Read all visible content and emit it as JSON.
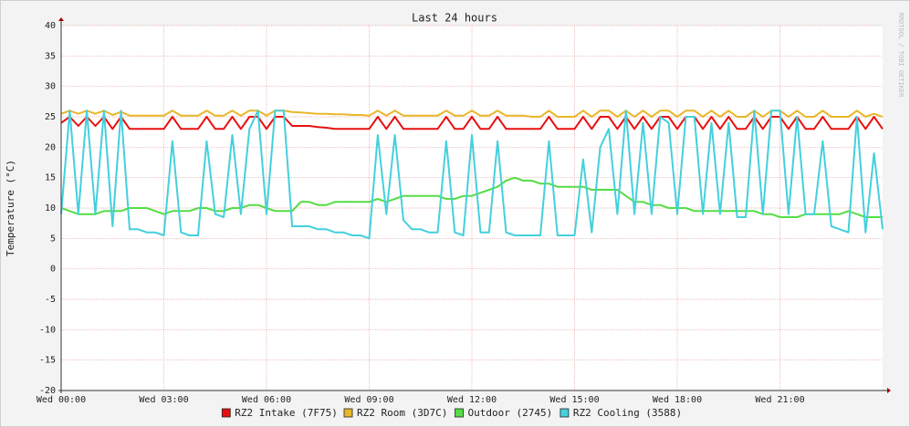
{
  "chart_data": {
    "type": "line",
    "title": "Last 24 hours",
    "ylabel": "Temperature (°C)",
    "watermark": "RRDTOOL / TOBI OETIKER",
    "grid": true,
    "xlim": [
      0,
      24
    ],
    "xticks": [
      {
        "value": 0,
        "label": "Wed 00:00"
      },
      {
        "value": 3,
        "label": "Wed 03:00"
      },
      {
        "value": 6,
        "label": "Wed 06:00"
      },
      {
        "value": 9,
        "label": "Wed 09:00"
      },
      {
        "value": 12,
        "label": "Wed 12:00"
      },
      {
        "value": 15,
        "label": "Wed 15:00"
      },
      {
        "value": 18,
        "label": "Wed 18:00"
      },
      {
        "value": 21,
        "label": "Wed 21:00"
      }
    ],
    "ylim": [
      -20,
      40
    ],
    "yticks": [
      -20,
      -15,
      -10,
      -5,
      0,
      5,
      10,
      15,
      20,
      25,
      30,
      35,
      40
    ],
    "x": [
      0,
      0.25,
      0.5,
      0.75,
      1,
      1.25,
      1.5,
      1.75,
      2,
      2.25,
      2.5,
      2.75,
      3,
      3.25,
      3.5,
      3.75,
      4,
      4.25,
      4.5,
      4.75,
      5,
      5.25,
      5.5,
      5.75,
      6,
      6.25,
      6.5,
      6.75,
      7,
      7.25,
      7.5,
      7.75,
      8,
      8.25,
      8.5,
      8.75,
      9,
      9.25,
      9.5,
      9.75,
      10,
      10.25,
      10.5,
      10.75,
      11,
      11.25,
      11.5,
      11.75,
      12,
      12.25,
      12.5,
      12.75,
      13,
      13.25,
      13.5,
      13.75,
      14,
      14.25,
      14.5,
      14.75,
      15,
      15.25,
      15.5,
      15.75,
      16,
      16.25,
      16.5,
      16.75,
      17,
      17.25,
      17.5,
      17.75,
      18,
      18.25,
      18.5,
      18.75,
      19,
      19.25,
      19.5,
      19.75,
      20,
      20.25,
      20.5,
      20.75,
      21,
      21.25,
      21.5,
      21.75,
      22,
      22.25,
      22.5,
      22.75,
      23,
      23.25,
      23.5,
      23.75,
      24
    ],
    "series": [
      {
        "name": "RZ2 Intake (7F75)",
        "color": "#e81010",
        "values": [
          24,
          25,
          23.5,
          25,
          23.5,
          25,
          23,
          25,
          23,
          23,
          23,
          23,
          23,
          25,
          23,
          23,
          23,
          25,
          23,
          23,
          25,
          23,
          25,
          25,
          23,
          25,
          25,
          23.5,
          23.5,
          23.5,
          23.3,
          23.2,
          23,
          23,
          23,
          23,
          23,
          25,
          23,
          25,
          23,
          23,
          23,
          23,
          23,
          25,
          23,
          23,
          25,
          23,
          23,
          25,
          23,
          23,
          23,
          23,
          23,
          25,
          23,
          23,
          23,
          25,
          23,
          25,
          25,
          23,
          25,
          23,
          25,
          23,
          25,
          25,
          23,
          25,
          25,
          23,
          25,
          23,
          25,
          23,
          23,
          25,
          23,
          25,
          25,
          23,
          25,
          23,
          23,
          25,
          23,
          23,
          23,
          25,
          23,
          25,
          23
        ]
      },
      {
        "name": "RZ2 Room (3D7C)",
        "color": "#e8b72a",
        "values": [
          25.5,
          26,
          25.5,
          26,
          25.5,
          26,
          25.3,
          25.8,
          25.2,
          25.2,
          25.2,
          25.2,
          25.2,
          26,
          25.2,
          25.2,
          25.2,
          26,
          25.2,
          25.2,
          26,
          25.2,
          26,
          26,
          25.2,
          26,
          26,
          25.8,
          25.7,
          25.6,
          25.5,
          25.5,
          25.4,
          25.4,
          25.3,
          25.3,
          25.2,
          26,
          25.2,
          26,
          25.2,
          25.2,
          25.2,
          25.2,
          25.2,
          26,
          25.2,
          25.2,
          26,
          25.2,
          25.2,
          26,
          25.2,
          25.2,
          25.2,
          25,
          25,
          26,
          25,
          25,
          25,
          26,
          25,
          26,
          26,
          25,
          26,
          25,
          26,
          25,
          26,
          26,
          25,
          26,
          26,
          25,
          26,
          25,
          26,
          25,
          25,
          26,
          25,
          26,
          26,
          25,
          26,
          25,
          25,
          26,
          25,
          25,
          25,
          26,
          25,
          25.5,
          25
        ]
      },
      {
        "name": "Outdoor (2745)",
        "color": "#55dd44",
        "values": [
          10,
          9.5,
          9,
          9,
          9,
          9.5,
          9.5,
          9.5,
          10,
          10,
          10,
          9.5,
          9,
          9.5,
          9.5,
          9.5,
          10,
          10,
          9.5,
          9.5,
          10,
          10,
          10.5,
          10.5,
          10,
          9.5,
          9.5,
          9.5,
          11,
          11,
          10.5,
          10.5,
          11,
          11,
          11,
          11,
          11,
          11.5,
          11,
          11.5,
          12,
          12,
          12,
          12,
          12,
          11.5,
          11.5,
          12,
          12,
          12.5,
          13,
          13.5,
          14.5,
          15,
          14.5,
          14.5,
          14,
          14,
          13.5,
          13.5,
          13.5,
          13.5,
          13,
          13,
          13,
          13,
          12,
          11,
          11,
          10.5,
          10.5,
          10,
          10,
          10,
          9.5,
          9.5,
          9.5,
          9.5,
          9.5,
          9.5,
          9.5,
          9.5,
          9,
          9,
          8.5,
          8.5,
          8.5,
          9,
          9,
          9,
          9,
          9,
          9.5,
          9,
          8.5,
          8.5,
          8.5
        ]
      },
      {
        "name": "RZ2 Cooling (3588)",
        "color": "#44d0dd",
        "values": [
          9,
          26,
          9,
          26,
          9,
          26,
          7,
          26,
          6.5,
          6.5,
          6,
          6,
          5.5,
          21,
          6,
          5.5,
          5.5,
          21,
          9,
          8.5,
          22,
          9,
          23,
          26,
          9,
          26,
          26,
          7,
          7,
          7,
          6.5,
          6.5,
          6,
          6,
          5.5,
          5.5,
          5,
          22,
          9,
          22,
          8,
          6.5,
          6.5,
          6,
          6,
          21,
          6,
          5.5,
          22,
          6,
          6,
          21,
          6,
          5.5,
          5.5,
          5.5,
          5.5,
          21,
          5.5,
          5.5,
          5.5,
          18,
          6,
          20,
          23,
          9,
          26,
          9,
          24,
          9,
          25,
          24,
          9,
          25,
          25,
          9,
          24,
          9,
          24,
          8.5,
          8.5,
          26,
          9,
          26,
          26,
          9,
          25,
          9,
          9,
          21,
          7,
          6.5,
          6,
          25,
          6,
          19,
          6.5
        ]
      }
    ]
  }
}
